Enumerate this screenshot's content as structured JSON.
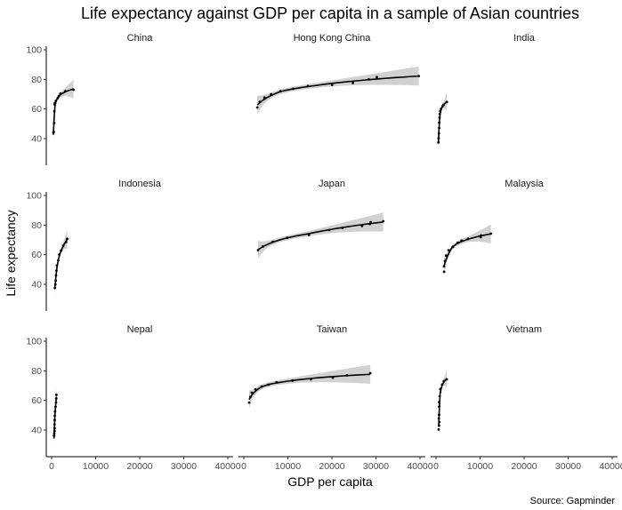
{
  "chart_data": {
    "type": "scatter",
    "title": "Life expectancy against GDP per capita in a sample of Asian countries",
    "xlabel": "GDP per capita",
    "ylabel": "Life expectancy",
    "caption": "Source: Gapminder",
    "xlim": [
      0,
      40000
    ],
    "ylim": [
      22,
      100
    ],
    "x_ticks": [
      0,
      10000,
      20000,
      30000,
      40000
    ],
    "y_ticks": [
      40,
      60,
      80,
      100
    ],
    "grid": false,
    "smoother": "loess curve with grey confidence band",
    "colors": {
      "points": "#000000",
      "line": "#000000",
      "band": "#cccccc"
    },
    "panels": [
      {
        "name": "China",
        "x": [
          400,
          575,
          487,
          613,
          677,
          741,
          962,
          1379,
          1656,
          2020,
          3119,
          4959
        ],
        "y": [
          44.0,
          50.5,
          44.5,
          58.4,
          63.1,
          64.0,
          65.5,
          67.3,
          68.7,
          70.4,
          72.0,
          73.0
        ]
      },
      {
        "name": "Hong Kong China",
        "x": [
          3054,
          3629,
          4693,
          6198,
          8316,
          11186,
          14560,
          20038,
          24757,
          28377,
          30209,
          39725
        ],
        "y": [
          61.0,
          64.8,
          67.7,
          70.0,
          72.0,
          73.6,
          75.5,
          76.2,
          77.6,
          80.0,
          81.5,
          82.2
        ]
      },
      {
        "name": "India",
        "x": [
          547,
          590,
          658,
          700,
          724,
          813,
          856,
          977,
          1164,
          1459,
          1746,
          2452
        ],
        "y": [
          37.4,
          40.2,
          43.6,
          47.2,
          50.7,
          54.2,
          56.6,
          58.6,
          60.2,
          61.8,
          62.9,
          64.7
        ]
      },
      {
        "name": "Indonesia",
        "x": [
          750,
          853,
          933,
          1003,
          1085,
          1207,
          1517,
          1748,
          2131,
          2627,
          3300,
          3541
        ],
        "y": [
          37.5,
          39.9,
          42.5,
          46.0,
          49.2,
          52.7,
          56.2,
          60.1,
          62.7,
          66.0,
          68.6,
          70.7
        ]
      },
      {
        "name": "Japan",
        "x": [
          3217,
          4318,
          6577,
          9847,
          14779,
          19384,
          22376,
          26825,
          28605,
          28816,
          31656
        ],
        "y": [
          63.0,
          65.5,
          68.7,
          71.4,
          73.4,
          76.6,
          78.1,
          79.4,
          80.7,
          82.0,
          82.6
        ]
      },
      {
        "name": "Malaysia",
        "x": [
          1831,
          1810,
          2037,
          2278,
          2850,
          3828,
          4920,
          5788,
          7277,
          10132,
          10207,
          12452
        ],
        "y": [
          48.5,
          52.1,
          55.7,
          59.4,
          63.0,
          65.3,
          68.0,
          69.5,
          70.7,
          71.9,
          73.0,
          74.2
        ]
      },
      {
        "name": "Nepal",
        "x": [
          545,
          598,
          652,
          676,
          674,
          695,
          718,
          775,
          897,
          1011,
          1057,
          1091
        ],
        "y": [
          36.2,
          37.7,
          39.4,
          41.2,
          43.9,
          46.7,
          49.6,
          52.5,
          55.7,
          58.6,
          61.3,
          63.8
        ]
      },
      {
        "name": "Taiwan",
        "x": [
          1207,
          1508,
          1822,
          2644,
          4063,
          5597,
          7426,
          11055,
          15216,
          20207,
          23404,
          28718
        ],
        "y": [
          58.5,
          62.4,
          65.2,
          67.5,
          69.4,
          70.6,
          72.2,
          73.4,
          74.3,
          75.3,
          76.9,
          78.4
        ]
      },
      {
        "name": "Vietnam",
        "x": [
          605,
          676,
          772,
          637,
          700,
          714,
          707,
          820,
          989,
          1386,
          1764,
          2442
        ],
        "y": [
          40.4,
          42.9,
          45.4,
          47.8,
          50.3,
          55.8,
          58.8,
          62.8,
          67.7,
          70.7,
          73.0,
          74.2
        ]
      }
    ]
  }
}
